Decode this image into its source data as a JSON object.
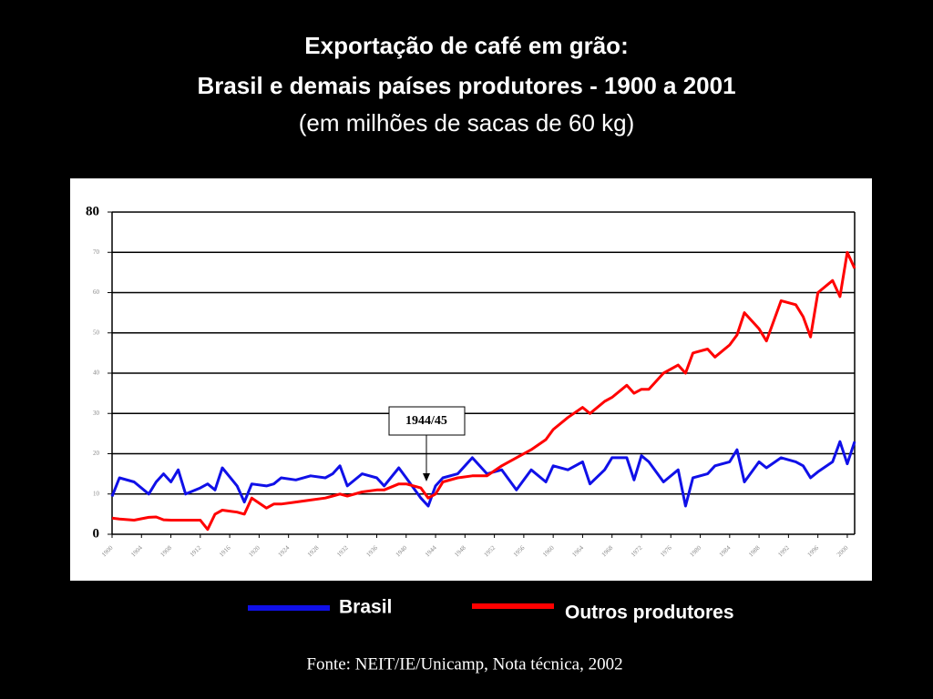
{
  "chart_data": {
    "type": "line",
    "title": "Exportação de café em grão:",
    "subtitle": "Brasil e demais países produtores - 1900 a 2001",
    "unit_note": "(em milhões de sacas de 60 kg)",
    "source": "Fonte: NEIT/IE/Unicamp, Nota técnica, 2002",
    "annotation": "1944/45",
    "x": [
      1900,
      1901,
      1903,
      1905,
      1906,
      1907,
      1908,
      1909,
      1910,
      1912,
      1913,
      1914,
      1915,
      1917,
      1918,
      1919,
      1921,
      1922,
      1923,
      1925,
      1927,
      1929,
      1930,
      1931,
      1932,
      1934,
      1936,
      1937,
      1939,
      1940,
      1942,
      1943,
      1944,
      1945,
      1947,
      1949,
      1951,
      1953,
      1955,
      1957,
      1959,
      1960,
      1962,
      1964,
      1965,
      1967,
      1968,
      1970,
      1971,
      1972,
      1973,
      1975,
      1977,
      1978,
      1979,
      1981,
      1982,
      1984,
      1985,
      1986,
      1988,
      1989,
      1991,
      1993,
      1994,
      1995,
      1996,
      1998,
      1999,
      2000,
      2001
    ],
    "series": [
      {
        "name": "Brasil",
        "color": "#1010e8",
        "values": [
          9.4,
          14,
          13,
          10,
          13,
          15,
          13,
          16,
          10,
          11.5,
          12.5,
          11,
          16.5,
          12,
          8,
          12.5,
          12,
          12.5,
          14,
          13.5,
          14.5,
          14,
          15,
          17,
          12,
          15,
          14,
          12,
          16.5,
          14,
          9,
          7,
          12,
          14,
          15,
          19,
          15,
          16,
          11,
          16,
          13,
          17,
          16,
          18,
          12.5,
          16,
          19,
          19,
          13.5,
          19.5,
          18,
          13,
          16,
          7,
          14,
          15,
          17,
          18,
          21,
          13,
          18,
          16.5,
          19,
          18,
          17,
          14,
          15.5,
          18,
          23,
          17.5,
          23
        ]
      },
      {
        "name": "Outros produtores",
        "color": "#ff0000",
        "values": [
          4,
          3.8,
          3.5,
          4.2,
          4.3,
          3.6,
          3.5,
          3.5,
          3.5,
          3.5,
          1.2,
          5,
          6,
          5.5,
          5,
          9,
          6.5,
          7.5,
          7.5,
          8,
          8.5,
          9,
          9.5,
          10,
          9.5,
          10.5,
          11,
          11,
          12.5,
          12.5,
          11.5,
          9,
          10,
          13,
          14,
          14.5,
          14.5,
          17,
          19,
          21,
          23.5,
          26,
          29,
          31.5,
          30,
          33,
          34,
          37,
          35,
          36,
          36,
          40,
          42,
          40,
          45,
          46,
          44,
          47,
          49.5,
          55,
          51,
          48,
          58,
          57,
          54,
          49,
          60,
          63,
          59,
          70,
          66
        ]
      }
    ],
    "xlim": [
      1900,
      2001
    ],
    "xticks": [
      1900,
      1904,
      1908,
      1912,
      1916,
      1920,
      1924,
      1928,
      1932,
      1936,
      1940,
      1944,
      1948,
      1952,
      1956,
      1960,
      1964,
      1968,
      1972,
      1976,
      1980,
      1984,
      1988,
      1992,
      1996,
      2000
    ],
    "ylim": [
      0,
      80
    ],
    "yticks": [
      0,
      10,
      20,
      30,
      40,
      50,
      60,
      70,
      80
    ],
    "grid": true
  }
}
